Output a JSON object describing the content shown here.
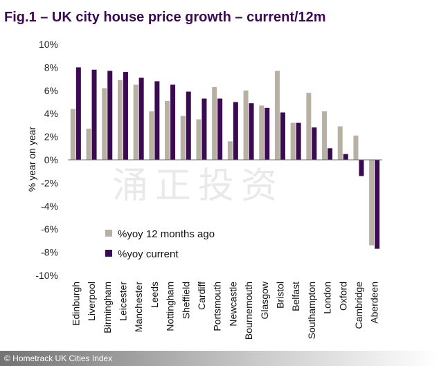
{
  "title": "Fig.1 – UK city house price growth – current/12m",
  "source": "© Hometrack UK Cities Index",
  "watermark": "涌正投资",
  "colors": {
    "previous": "#b8b0a2",
    "current": "#3b0a52",
    "title": "#3b0a52"
  },
  "chart_data": {
    "type": "bar",
    "ylabel": "% year on year",
    "ylim": [
      -10,
      10
    ],
    "yticks": [
      "10%",
      "8%",
      "6%",
      "4%",
      "2%",
      "0%",
      "-2%",
      "-4%",
      "-6%",
      "-8%",
      "-10%"
    ],
    "yticks_values": [
      10,
      8,
      6,
      4,
      2,
      0,
      -2,
      -4,
      -6,
      -8,
      -10
    ],
    "legend_position": "lower-left",
    "categories": [
      "Edinburgh",
      "Liverpool",
      "Birmingham",
      "Leicester",
      "Manchester",
      "Leeds",
      "Nottingham",
      "Sheffield",
      "Cardiff",
      "Portsmouth",
      "Newcastle",
      "Bournemouth",
      "Glasgow",
      "Bristol",
      "Belfast",
      "Southampton",
      "London",
      "Oxford",
      "Cambridge",
      "Aberdeen"
    ],
    "series": [
      {
        "name": "%yoy 12 months ago",
        "color": "#b8b0a2",
        "values": [
          4.4,
          2.7,
          6.2,
          6.9,
          6.5,
          4.2,
          5.1,
          3.8,
          3.5,
          6.3,
          1.6,
          6.0,
          4.7,
          7.7,
          3.2,
          5.8,
          4.2,
          2.9,
          2.1,
          -7.4
        ]
      },
      {
        "name": "%yoy current",
        "color": "#3b0a52",
        "values": [
          8.0,
          7.8,
          7.7,
          7.6,
          7.1,
          6.8,
          6.5,
          5.9,
          5.3,
          5.3,
          5.0,
          4.9,
          4.5,
          4.1,
          3.2,
          2.8,
          1.0,
          0.5,
          -1.4,
          -7.7
        ]
      }
    ]
  }
}
